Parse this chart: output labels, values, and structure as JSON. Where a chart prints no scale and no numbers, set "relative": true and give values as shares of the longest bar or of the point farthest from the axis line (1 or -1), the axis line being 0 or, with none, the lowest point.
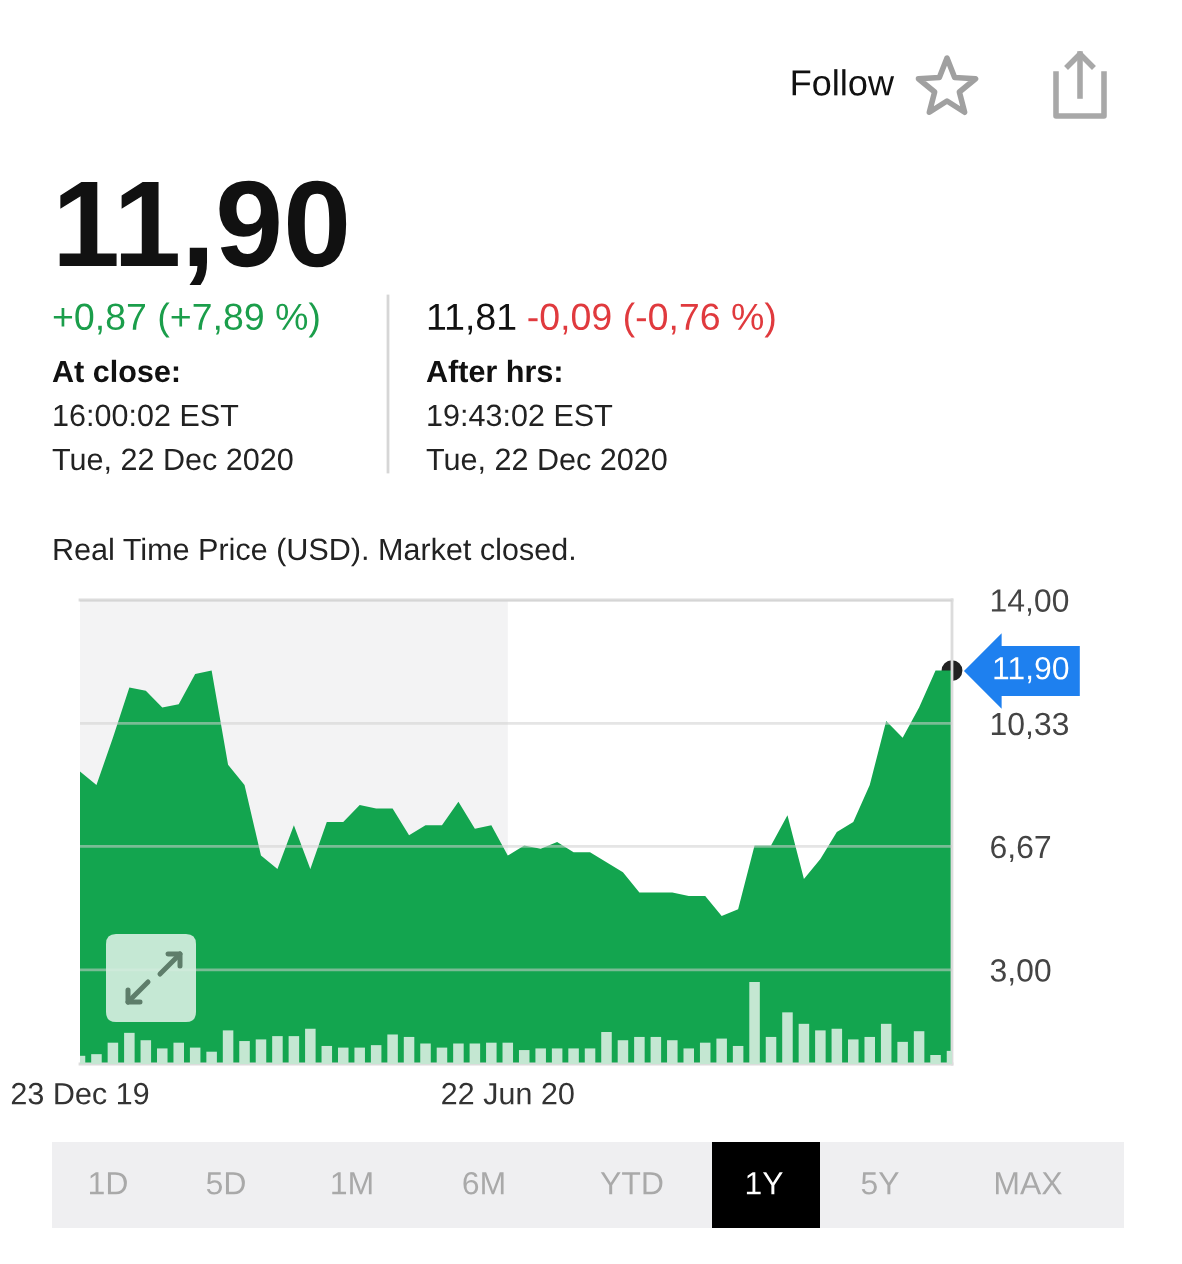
{
  "chart_data": [
    {
      "type": "area",
      "title": "11,90",
      "subtitle": "Real Time Price (USD). Market closed.",
      "categories": [
        "23 Dec 19",
        null,
        null,
        null,
        null,
        null,
        null,
        null,
        null,
        null,
        null,
        null,
        null,
        null,
        null,
        null,
        null,
        null,
        null,
        null,
        null,
        null,
        null,
        null,
        null,
        null,
        "22 Jun 20",
        null,
        null,
        null,
        null,
        null,
        null,
        null,
        null,
        null,
        null,
        null,
        null,
        null,
        null,
        null,
        null,
        null,
        null,
        null,
        null,
        null,
        null,
        null,
        null,
        null,
        null,
        null
      ],
      "series": [
        {
          "color": "#13a54f",
          "values": [
            8.9,
            8.5,
            9.9,
            11.4,
            11.3,
            10.8,
            10.9,
            11.8,
            11.9,
            9.1,
            8.5,
            6.4,
            6.0,
            7.3,
            6.0,
            7.4,
            7.4,
            7.9,
            7.8,
            7.8,
            7.0,
            7.3,
            7.3,
            8.0,
            7.2,
            7.3,
            6.4,
            6.7,
            6.6,
            6.8,
            6.5,
            6.5,
            6.2,
            5.9,
            5.3,
            5.3,
            5.3,
            5.2,
            5.2,
            4.6,
            4.8,
            6.7,
            6.7,
            7.6,
            5.7,
            6.3,
            7.1,
            7.4,
            8.5,
            10.4,
            9.9,
            10.8,
            11.9,
            11.9
          ]
        }
      ],
      "ylim": [
        0.2,
        14
      ],
      "yticks": [
        {
          "value": 3,
          "label": "3,00"
        },
        {
          "value": 6.67,
          "label": "6,67"
        },
        {
          "value": 10.33,
          "label": "10,33"
        },
        {
          "value": 14,
          "label": "14,00"
        }
      ],
      "grid": "y",
      "bands": [
        {
          "axis": "x",
          "from": "23 Dec 19",
          "to": "22 Jun 20",
          "color": "#f3f3f4"
        }
      ],
      "annotations": [
        "+0,87 (+7,89 %)",
        "At close:",
        "16:00:02 EST",
        "Tue, 22 Dec 2020",
        "11,81",
        "-0,09 (-0,76 %)",
        "After hrs:",
        "19:43:02 EST",
        "Tue, 22 Dec 2020",
        "Follow",
        "1D",
        "5D",
        "1M",
        "6M",
        "YTD",
        "1Y",
        "5Y",
        "MAX",
        "11,90"
      ]
    },
    {
      "type": "bar",
      "relative": true,
      "categories": [
        null,
        null,
        null,
        null,
        null,
        null,
        null,
        null,
        null,
        null,
        null,
        null,
        null,
        null,
        null,
        null,
        null,
        null,
        null,
        null,
        null,
        null,
        null,
        null,
        null,
        null,
        null,
        null,
        null,
        null,
        null,
        null,
        null,
        null,
        null,
        null,
        null,
        null,
        null,
        null,
        null,
        null,
        null,
        null,
        null,
        null,
        null,
        null,
        null,
        null,
        null,
        null,
        null,
        null
      ],
      "series": [
        {
          "color": "#c4e7d2",
          "values": [
            0.1,
            0.12,
            0.26,
            0.38,
            0.29,
            0.19,
            0.26,
            0.2,
            0.15,
            0.41,
            0.28,
            0.3,
            0.34,
            0.34,
            0.43,
            0.22,
            0.2,
            0.2,
            0.23,
            0.36,
            0.33,
            0.25,
            0.2,
            0.25,
            0.25,
            0.26,
            0.26,
            0.17,
            0.19,
            0.19,
            0.19,
            0.19,
            0.39,
            0.29,
            0.33,
            0.33,
            0.29,
            0.19,
            0.26,
            0.31,
            0.22,
            1,
            0.33,
            0.63,
            0.49,
            0.41,
            0.43,
            0.3,
            0.33,
            0.49,
            0.27,
            0.4,
            0.11,
            0.16
          ]
        }
      ]
    }
  ]
}
